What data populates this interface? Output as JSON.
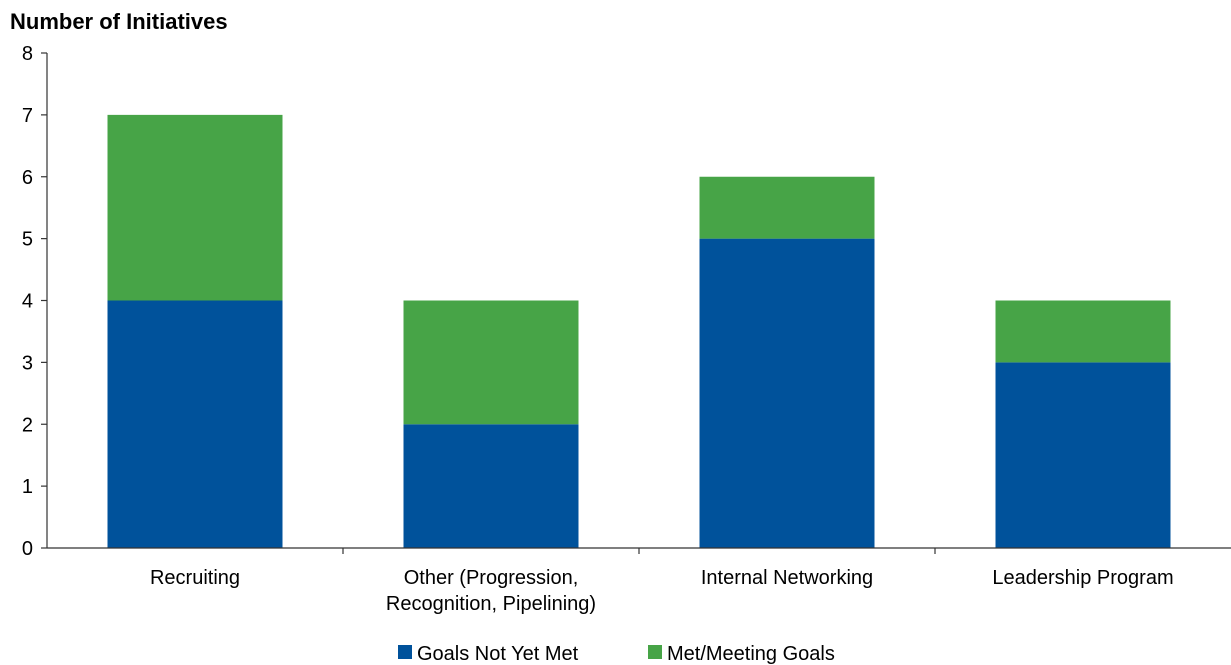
{
  "chart_data": {
    "type": "bar",
    "stacked": true,
    "title": "",
    "ylabel": "Number of Initiatives",
    "xlabel": "",
    "ylim": [
      0,
      8
    ],
    "yticks": [
      0,
      1,
      2,
      3,
      4,
      5,
      6,
      7,
      8
    ],
    "grid": false,
    "legend_position": "bottom",
    "categories": [
      [
        "Recruiting"
      ],
      [
        "Other (Progression,",
        "Recognition, Pipelining)"
      ],
      [
        "Internal Networking"
      ],
      [
        "Leadership Program"
      ]
    ],
    "series": [
      {
        "name": "Goals Not Yet Met",
        "color": "#00529B",
        "values": [
          4,
          2,
          5,
          3
        ]
      },
      {
        "name": "Met/Meeting Goals",
        "color": "#47A447",
        "values": [
          3,
          2,
          1,
          1
        ]
      }
    ]
  }
}
